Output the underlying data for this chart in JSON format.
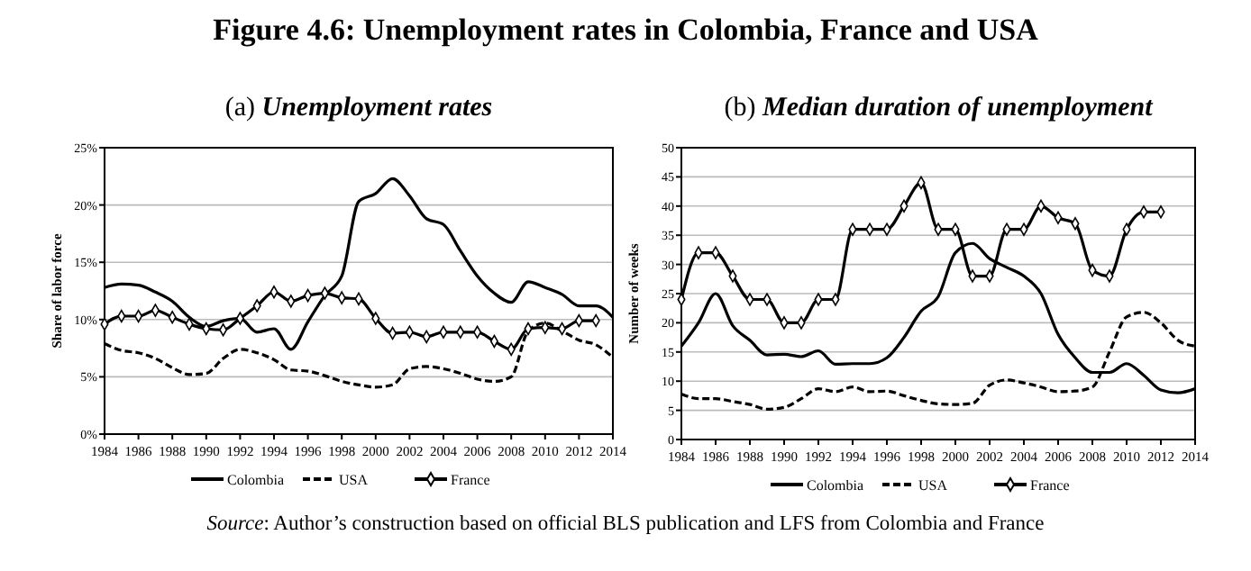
{
  "chart_data": [
    {
      "type": "line",
      "title": "Figure 4.6: Unemployment rates in Colombia, France and USA",
      "subtitle": "(a) Unemployment rates",
      "ylabel": "Share of labor force",
      "annotations": [
        "Source: Author’s construction based on official BLS publication and LFS from Colombia and France"
      ],
      "x": [
        1984,
        1985,
        1986,
        1987,
        1988,
        1989,
        1990,
        1991,
        1992,
        1993,
        1994,
        1995,
        1996,
        1997,
        1998,
        1999,
        2000,
        2001,
        2002,
        2003,
        2004,
        2005,
        2006,
        2007,
        2008,
        2009,
        2010,
        2011,
        2012,
        2013,
        2014
      ],
      "series": [
        {
          "name": "Colombia",
          "color": "#000000",
          "line_style": "solid",
          "marker": "none",
          "values": [
            12.8,
            13.1,
            13.0,
            12.4,
            11.6,
            10.2,
            9.4,
            9.9,
            10.1,
            8.9,
            9.2,
            7.4,
            9.8,
            12.1,
            13.8,
            20.3,
            21.0,
            22.3,
            20.8,
            18.8,
            18.3,
            16.0,
            13.8,
            12.3,
            11.5,
            13.3,
            12.8,
            12.2,
            11.2,
            11.2,
            10.2
          ]
        },
        {
          "name": "USA",
          "color": "#000000",
          "line_style": "dashed",
          "marker": "none",
          "values": [
            7.9,
            7.3,
            7.1,
            6.6,
            5.8,
            5.2,
            5.3,
            6.6,
            7.4,
            7.1,
            6.5,
            5.6,
            5.5,
            5.1,
            4.6,
            4.3,
            4.1,
            4.3,
            5.7,
            5.9,
            5.7,
            5.3,
            4.8,
            4.6,
            5.0,
            9.0,
            9.7,
            9.0,
            8.2,
            7.8,
            6.7
          ]
        },
        {
          "name": "France",
          "color": "#000000",
          "line_style": "solid",
          "marker": "diamond",
          "values": [
            9.6,
            10.3,
            10.3,
            10.8,
            10.2,
            9.6,
            9.2,
            9.1,
            10.1,
            11.2,
            12.4,
            11.6,
            12.1,
            12.3,
            11.9,
            11.8,
            10.1,
            8.8,
            8.9,
            8.5,
            8.9,
            8.9,
            8.9,
            8.1,
            7.4,
            9.2,
            9.3,
            9.2,
            9.9,
            9.9,
            null
          ]
        }
      ],
      "xlim": [
        1984,
        2014
      ],
      "xticks": [
        1984,
        1986,
        1988,
        1990,
        1992,
        1994,
        1996,
        1998,
        2000,
        2002,
        2004,
        2006,
        2008,
        2010,
        2012,
        2014
      ],
      "ylim": [
        0,
        25
      ],
      "yticks": [
        {
          "value": 0,
          "label": "0%"
        },
        {
          "value": 5,
          "label": "5%"
        },
        {
          "value": 10,
          "label": "10%"
        },
        {
          "value": 15,
          "label": "15%"
        },
        {
          "value": 20,
          "label": "20%"
        },
        {
          "value": 25,
          "label": "25%"
        }
      ],
      "grid": "y",
      "legend": "bottom"
    },
    {
      "type": "line",
      "title": "(b) Median duration of unemployment",
      "ylabel": "Number of weeks",
      "x": [
        1984,
        1985,
        1986,
        1987,
        1988,
        1989,
        1990,
        1991,
        1992,
        1993,
        1994,
        1995,
        1996,
        1997,
        1998,
        1999,
        2000,
        2001,
        2002,
        2003,
        2004,
        2005,
        2006,
        2007,
        2008,
        2009,
        2010,
        2011,
        2012,
        2013,
        2014
      ],
      "series": [
        {
          "name": "Colombia",
          "color": "#000000",
          "line_style": "solid",
          "marker": "none",
          "values": [
            16,
            20,
            25,
            19.5,
            17,
            14.5,
            14.6,
            14.2,
            15.2,
            12.9,
            13,
            13,
            14,
            17.5,
            22,
            24.5,
            32,
            33.6,
            31,
            29.5,
            28,
            25,
            18,
            14,
            11.5,
            11.5,
            13,
            11,
            8.5,
            8,
            8.7
          ]
        },
        {
          "name": "USA",
          "color": "#000000",
          "line_style": "dashed",
          "marker": "none",
          "values": [
            7.8,
            7,
            7,
            6.5,
            6,
            5.2,
            5.5,
            7,
            8.7,
            8.2,
            9,
            8.2,
            8.3,
            7.5,
            6.7,
            6.1,
            6,
            6.2,
            9.3,
            10.2,
            9.7,
            9,
            8.2,
            8.3,
            9,
            15,
            21,
            21.8,
            20,
            17,
            16
          ]
        },
        {
          "name": "France",
          "color": "#000000",
          "line_style": "solid",
          "marker": "diamond",
          "values": [
            24,
            32,
            32,
            28,
            24,
            24,
            20,
            20,
            24,
            24,
            36,
            36,
            36,
            40,
            44,
            36,
            36,
            28,
            28,
            36,
            36,
            40,
            38,
            37,
            29,
            28,
            36,
            39,
            39,
            null,
            null
          ]
        }
      ],
      "xlim": [
        1984,
        2014
      ],
      "xticks": [
        1984,
        1986,
        1988,
        1990,
        1992,
        1994,
        1996,
        1998,
        2000,
        2002,
        2004,
        2006,
        2008,
        2010,
        2012,
        2014
      ],
      "ylim": [
        0,
        50
      ],
      "yticks": [
        0,
        5,
        10,
        15,
        20,
        25,
        30,
        35,
        40,
        45,
        50
      ],
      "grid": "y",
      "legend": "bottom"
    }
  ]
}
